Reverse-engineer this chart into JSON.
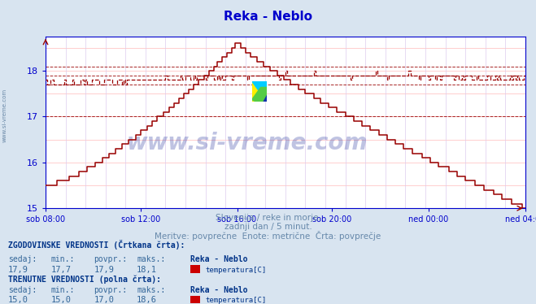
{
  "title": "Reka - Neblo",
  "title_color": "#0000cc",
  "bg_color": "#d8e4f0",
  "plot_bg_color": "#ffffff",
  "grid_color_h": "#ffbbbb",
  "grid_color_v": "#ddccee",
  "axis_color": "#0000cc",
  "line_color": "#990000",
  "ylim": [
    15.0,
    18.75
  ],
  "yticks": [
    15,
    16,
    17,
    18
  ],
  "xtick_labels": [
    "sob 08:00",
    "sob 12:00",
    "sob 16:00",
    "sob 20:00",
    "ned 00:00",
    "ned 04:00"
  ],
  "xtick_pos_frac": [
    0.0,
    0.2,
    0.4,
    0.6,
    0.8,
    1.0
  ],
  "subtitle1": "Slovenija / reke in morje.",
  "subtitle2": "zadnji dan / 5 minut.",
  "subtitle3": "Meritve: povprečne  Enote: metrične  Črta: povprečje",
  "subtitle_color": "#6688aa",
  "watermark": "www.si-vreme.com",
  "watermark_color": "#1a2a99",
  "hist_label": "ZGODOVINSKE VREDNOSTI (Črtkana črta):",
  "curr_label": "TRENUTNE VREDNOSTI (polna črta):",
  "hist_sedaj": "17,9",
  "hist_min": "17,7",
  "hist_povpr": "17,9",
  "hist_maks": "18,1",
  "curr_sedaj": "15,0",
  "curr_min": "15,0",
  "curr_povpr": "17,0",
  "curr_maks": "18,6",
  "station": "Reka - Neblo",
  "legend_label": "temperatura[C]",
  "hline_hist_min": 17.7,
  "hline_hist_avg": 17.9,
  "hline_hist_max": 18.1,
  "hline_curr_avg": 17.0,
  "tc_header": "#003388",
  "tc_val": "#336699",
  "left_label": "www.si-vreme.com"
}
